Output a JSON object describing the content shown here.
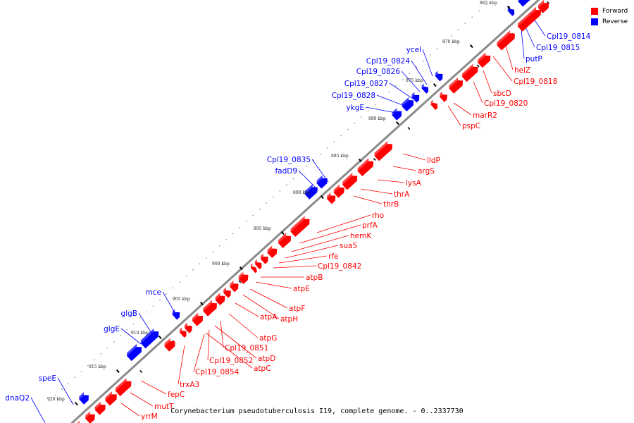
{
  "colors": {
    "forward": "#ff0000",
    "reverse": "#0000ff",
    "axis": "#8a8a8a",
    "background": "#ffffff"
  },
  "legend": {
    "forward_label": "Forward",
    "reverse_label": "Reverse"
  },
  "caption": "Corynebacterium pseudotuberculosis I19, complete genome. - 0..2337730",
  "kbp_labels": [
    "865 kbp",
    "870 kbp",
    "875 kbp",
    "880 kbp",
    "885 kbp",
    "890 kbp",
    "895 kbp",
    "900 kbp",
    "905 kbp",
    "910 kbp",
    "915 kbp",
    "920 kbp"
  ],
  "forward_genes": [
    "helZ",
    "Cpl19_0818",
    "sbcD",
    "Cpl19_0820",
    "marR2",
    "pspC",
    "lldP",
    "argS",
    "lysA",
    "thrA",
    "thrB",
    "rho",
    "prfA",
    "hemK",
    "sua5",
    "rfe",
    "Cpl19_0842",
    "atpB",
    "atpE",
    "atpF",
    "atpH",
    "atpA",
    "atpG",
    "Cpl19_0851",
    "atpD",
    "Cpl19_0852",
    "atpC",
    "Cpl19_0854",
    "trxA3",
    "fepC",
    "mutT",
    "yrrM"
  ],
  "reverse_genes": [
    "Cpl19_0814",
    "Cpl19_0815",
    "putP",
    "ycel",
    "Cpl19_0824",
    "Cpl19_0826",
    "Cpl19_0827",
    "Cpl19_0828",
    "ykgE",
    "Cpl19_0835",
    "fadD9",
    "mce",
    "glgB",
    "glgE",
    "speE",
    "dnaQ2"
  ]
}
